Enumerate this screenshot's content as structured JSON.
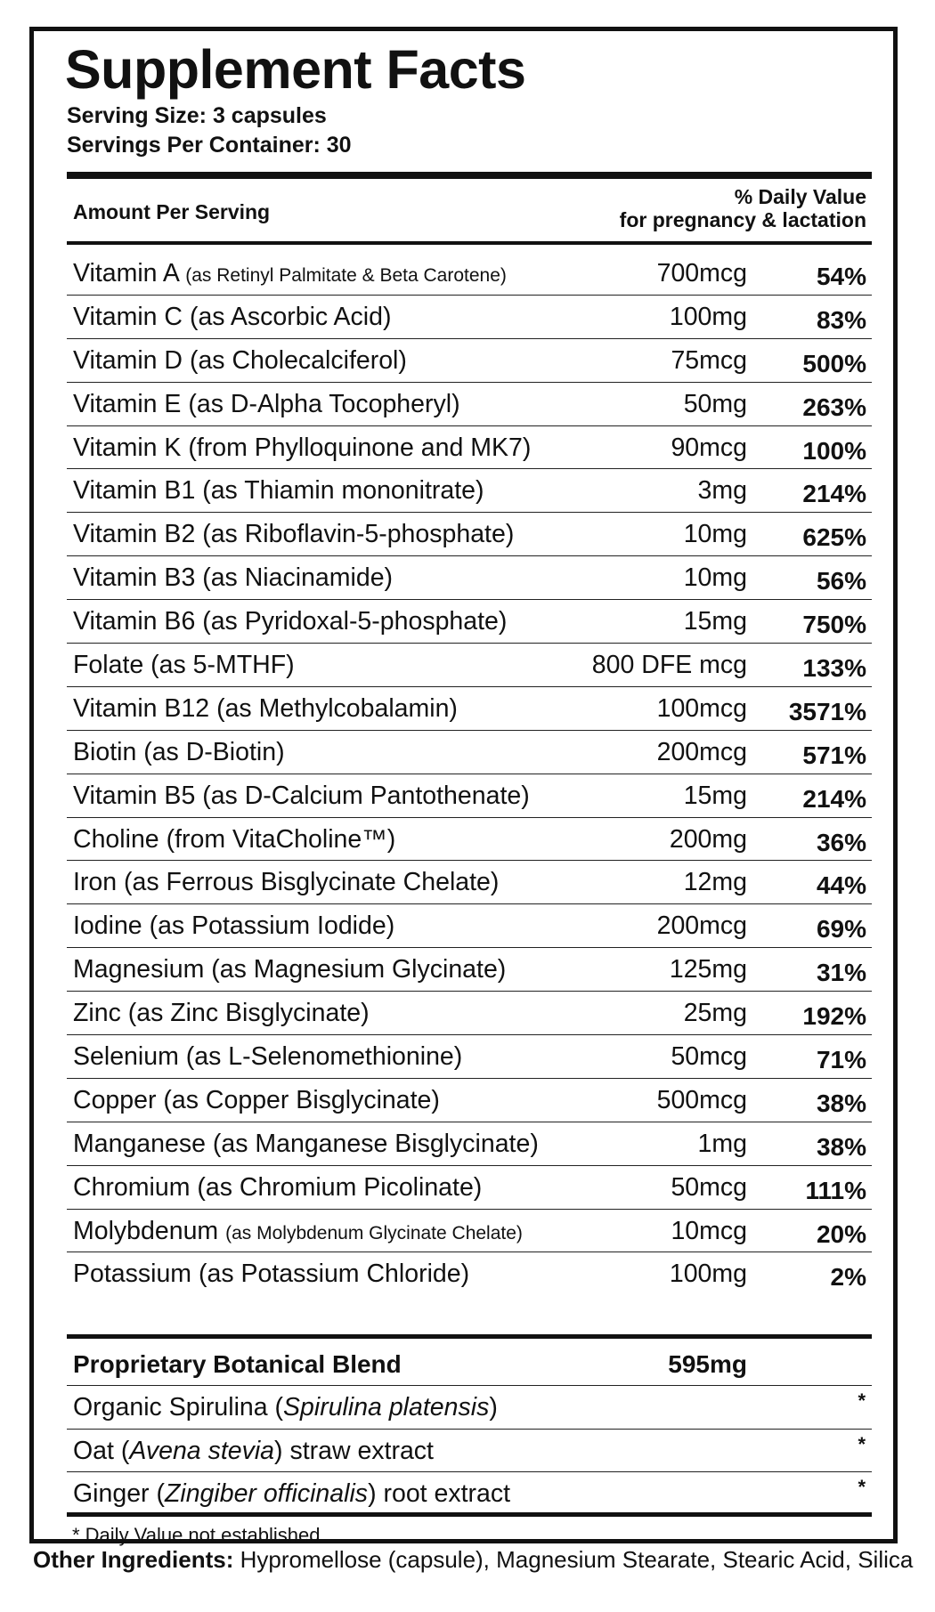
{
  "title": "Supplement Facts",
  "serving_size": "Serving Size: 3 capsules",
  "servings_per_container": "Servings Per Container: 30",
  "header": {
    "left": "Amount Per Serving",
    "right_line1": "% Daily Value",
    "right_line2": "for pregnancy & lactation"
  },
  "nutrients": [
    {
      "name": "Vitamin A",
      "source": "(as Retinyl Palmitate & Beta Carotene)",
      "source_small": true,
      "amount": "700mcg",
      "dv": "54%"
    },
    {
      "name": "Vitamin C",
      "source": "(as Ascorbic Acid)",
      "source_small": false,
      "amount": "100mg",
      "dv": "83%"
    },
    {
      "name": "Vitamin D",
      "source": "(as Cholecalciferol)",
      "source_small": false,
      "amount": "75mcg",
      "dv": "500%"
    },
    {
      "name": "Vitamin E",
      "source": "(as D-Alpha Tocopheryl)",
      "source_small": false,
      "amount": "50mg",
      "dv": "263%"
    },
    {
      "name": "Vitamin K",
      "source": "(from Phylloquinone and MK7)",
      "source_small": false,
      "amount": "90mcg",
      "dv": "100%"
    },
    {
      "name": "Vitamin B1",
      "source": "(as Thiamin mononitrate)",
      "source_small": false,
      "amount": "3mg",
      "dv": "214%"
    },
    {
      "name": "Vitamin B2",
      "source": "(as Riboflavin-5-phosphate)",
      "source_small": false,
      "amount": "10mg",
      "dv": "625%"
    },
    {
      "name": "Vitamin B3",
      "source": "(as Niacinamide)",
      "source_small": false,
      "amount": "10mg",
      "dv": "56%"
    },
    {
      "name": "Vitamin B6",
      "source": "(as Pyridoxal-5-phosphate)",
      "source_small": false,
      "amount": "15mg",
      "dv": "750%"
    },
    {
      "name": "Folate",
      "source": "(as 5-MTHF)",
      "source_small": false,
      "amount": "800 DFE mcg",
      "dv": "133%"
    },
    {
      "name": "Vitamin B12",
      "source": "(as Methylcobalamin)",
      "source_small": false,
      "amount": "100mcg",
      "dv": "3571%"
    },
    {
      "name": "Biotin",
      "source": "(as D-Biotin)",
      "source_small": false,
      "amount": "200mcg",
      "dv": "571%"
    },
    {
      "name": "Vitamin B5",
      "source": "(as D-Calcium Pantothenate)",
      "source_small": false,
      "amount": "15mg",
      "dv": "214%"
    },
    {
      "name": "Choline",
      "source": "(from VitaCholine™)",
      "source_small": false,
      "amount": "200mg",
      "dv": "36%"
    },
    {
      "name": "Iron",
      "source": "(as Ferrous Bisglycinate Chelate)",
      "source_small": false,
      "amount": "12mg",
      "dv": "44%"
    },
    {
      "name": "Iodine",
      "source": "(as Potassium Iodide)",
      "source_small": false,
      "amount": "200mcg",
      "dv": "69%"
    },
    {
      "name": "Magnesium",
      "source": "(as Magnesium Glycinate)",
      "source_small": false,
      "amount": "125mg",
      "dv": "31%"
    },
    {
      "name": "Zinc",
      "source": "(as Zinc Bisglycinate)",
      "source_small": false,
      "amount": "25mg",
      "dv": "192%"
    },
    {
      "name": "Selenium",
      "source": "(as L-Selenomethionine)",
      "source_small": false,
      "amount": "50mcg",
      "dv": "71%"
    },
    {
      "name": "Copper",
      "source": "(as Copper Bisglycinate)",
      "source_small": false,
      "amount": "500mcg",
      "dv": "38%"
    },
    {
      "name": "Manganese",
      "source": "(as Manganese Bisglycinate)",
      "source_small": false,
      "amount": "1mg",
      "dv": "38%"
    },
    {
      "name": "Chromium",
      "source": "(as Chromium Picolinate)",
      "source_small": false,
      "amount": "50mcg",
      "dv": "111%"
    },
    {
      "name": "Molybdenum",
      "source": "(as Molybdenum Glycinate Chelate)",
      "source_small": true,
      "amount": "10mcg",
      "dv": "20%"
    },
    {
      "name": "Potassium",
      "source": "(as Potassium Chloride)",
      "source_small": false,
      "amount": "100mg",
      "dv": "2%"
    }
  ],
  "blend": {
    "name": "Proprietary Botanical Blend",
    "amount": "595mg",
    "items": [
      {
        "pre": "Organic Spirulina (",
        "latin": "Spirulina platensis",
        "post": ")",
        "dv": "*"
      },
      {
        "pre": "Oat (",
        "latin": "Avena stevia",
        "post": ") straw extract",
        "dv": "*"
      },
      {
        "pre": "Ginger (",
        "latin": "Zingiber officinalis",
        "post": ") root extract",
        "dv": "*"
      }
    ]
  },
  "footnote": "* Daily Value not established",
  "other_ingredients": {
    "label": "Other Ingredients:",
    "text": " Hypromellose (capsule), Magnesium Stearate, Stearic Acid, Silica"
  }
}
